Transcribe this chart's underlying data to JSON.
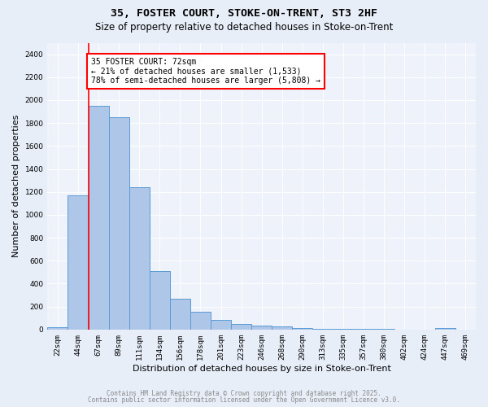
{
  "title_line1": "35, FOSTER COURT, STOKE-ON-TRENT, ST3 2HF",
  "title_line2": "Size of property relative to detached houses in Stoke-on-Trent",
  "xlabel": "Distribution of detached houses by size in Stoke-on-Trent",
  "ylabel": "Number of detached properties",
  "categories": [
    "22sqm",
    "44sqm",
    "67sqm",
    "89sqm",
    "111sqm",
    "134sqm",
    "156sqm",
    "178sqm",
    "201sqm",
    "223sqm",
    "246sqm",
    "268sqm",
    "290sqm",
    "313sqm",
    "335sqm",
    "357sqm",
    "380sqm",
    "402sqm",
    "424sqm",
    "447sqm",
    "469sqm"
  ],
  "values": [
    20,
    1170,
    1950,
    1850,
    1240,
    510,
    270,
    155,
    85,
    45,
    35,
    30,
    15,
    5,
    5,
    3,
    3,
    2,
    2,
    10,
    0
  ],
  "bar_color": "#aec6e8",
  "bar_edge_color": "#5b9bd5",
  "red_line_x": 1.5,
  "annotation_text": "35 FOSTER COURT: 72sqm\n← 21% of detached houses are smaller (1,533)\n78% of semi-detached houses are larger (5,808) →",
  "annotation_box_color": "white",
  "annotation_box_edge_color": "red",
  "ylim": [
    0,
    2500
  ],
  "yticks": [
    0,
    200,
    400,
    600,
    800,
    1000,
    1200,
    1400,
    1600,
    1800,
    2000,
    2200,
    2400
  ],
  "footnote_line1": "Contains HM Land Registry data © Crown copyright and database right 2025.",
  "footnote_line2": "Contains public sector information licensed under the Open Government Licence v3.0.",
  "bg_color": "#e8eef8",
  "plot_bg_color": "#eef2fa",
  "grid_color": "white",
  "title_fontsize": 9.5,
  "subtitle_fontsize": 8.5,
  "tick_fontsize": 6.5,
  "ylabel_fontsize": 8,
  "xlabel_fontsize": 8,
  "annotation_fontsize": 7,
  "footnote_fontsize": 5.5
}
